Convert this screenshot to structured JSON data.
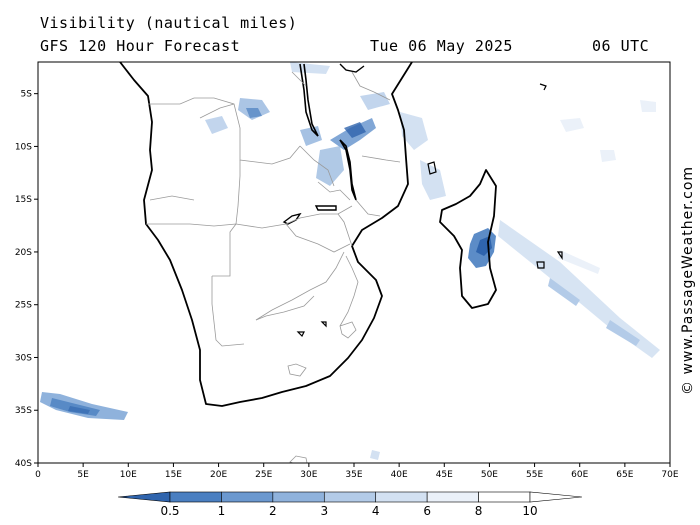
{
  "header": {
    "title_line1": "Visibility (nautical miles)",
    "title_line2": "GFS 120 Hour Forecast",
    "date": "Tue 06 May 2025",
    "time": "06 UTC"
  },
  "map": {
    "region": "Southern Africa and Madagascar",
    "lon_range": [
      0,
      70
    ],
    "lat_range": [
      -40,
      -2
    ],
    "x_ticks": [
      "0",
      "5E",
      "10E",
      "15E",
      "20E",
      "25E",
      "30E",
      "35E",
      "40E",
      "45E",
      "50E",
      "55E",
      "60E",
      "65E",
      "70E"
    ],
    "y_ticks": [
      "5S",
      "10S",
      "15S",
      "20S",
      "25S",
      "30S",
      "35S",
      "40S"
    ],
    "coastline_color": "#000000",
    "border_color": "#9a9a9a"
  },
  "colorbar": {
    "labels": [
      "0.5",
      "1",
      "2",
      "3",
      "4",
      "6",
      "8",
      "10"
    ],
    "colors": [
      "#2f64ad",
      "#4a7fc1",
      "#6b98cf",
      "#8fb2dc",
      "#b3cbe8",
      "#d3e1f2",
      "#ebf1f9",
      "#ffffff"
    ]
  },
  "copyright": "© www.PassageWeather.com"
}
